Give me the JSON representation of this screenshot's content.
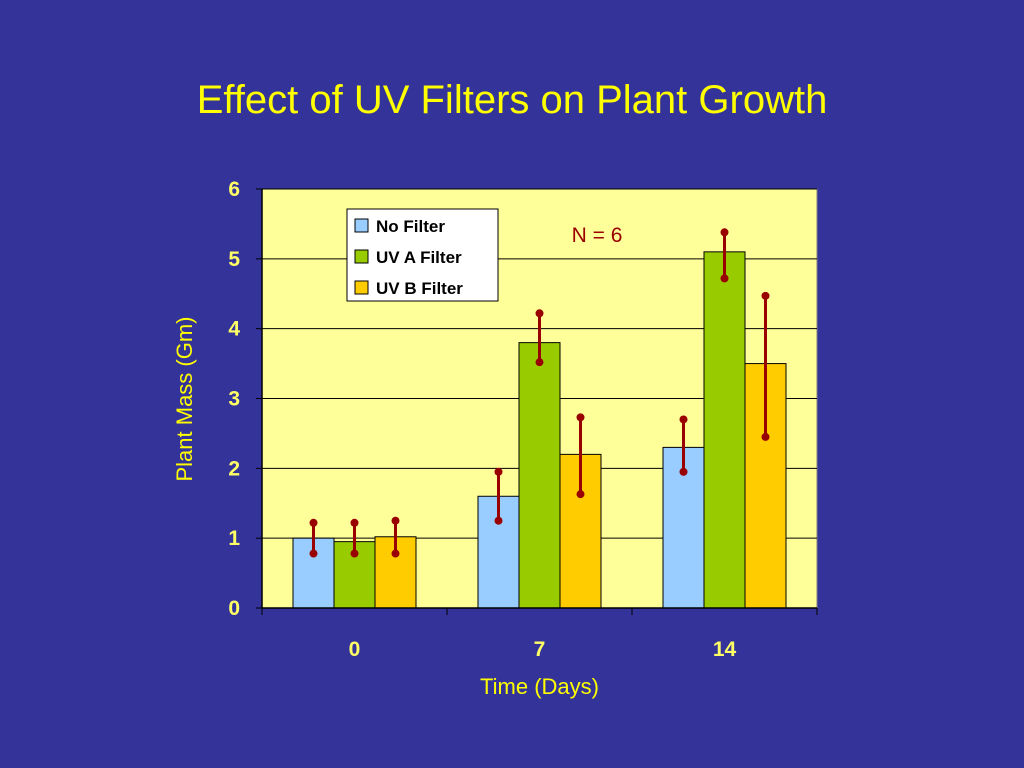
{
  "slide": {
    "title": "Effect of UV Filters on Plant Growth"
  },
  "chart_data": {
    "type": "bar",
    "title": "Effect of UV Filters on Plant Growth",
    "xlabel": "Time (Days)",
    "ylabel": "Plant Mass (Gm)",
    "categories": [
      "0",
      "7",
      "14"
    ],
    "ylim": [
      0,
      6
    ],
    "yticks": [
      "0",
      "1",
      "2",
      "3",
      "4",
      "5",
      "6"
    ],
    "grid": true,
    "legend_position": "top-left",
    "annotation": "N = 6",
    "series": [
      {
        "name": "No Filter",
        "color": "#99CCFF",
        "values": [
          1.0,
          1.6,
          2.3
        ],
        "err_low": [
          0.78,
          1.25,
          1.95
        ],
        "err_high": [
          1.22,
          1.95,
          2.7
        ]
      },
      {
        "name": "UV A Filter",
        "color": "#99CC00",
        "values": [
          0.95,
          3.8,
          5.1
        ],
        "err_low": [
          0.78,
          3.52,
          4.72
        ],
        "err_high": [
          1.22,
          4.22,
          5.38
        ]
      },
      {
        "name": "UV B Filter",
        "color": "#FFCC00",
        "values": [
          1.02,
          2.2,
          3.5
        ],
        "err_low": [
          0.78,
          1.63,
          2.45
        ],
        "err_high": [
          1.25,
          2.73,
          4.47
        ]
      }
    ],
    "colors": {
      "plot_bg": "#FFFF99",
      "error_bar": "#990000",
      "axis_text": "#FFFF66"
    }
  }
}
